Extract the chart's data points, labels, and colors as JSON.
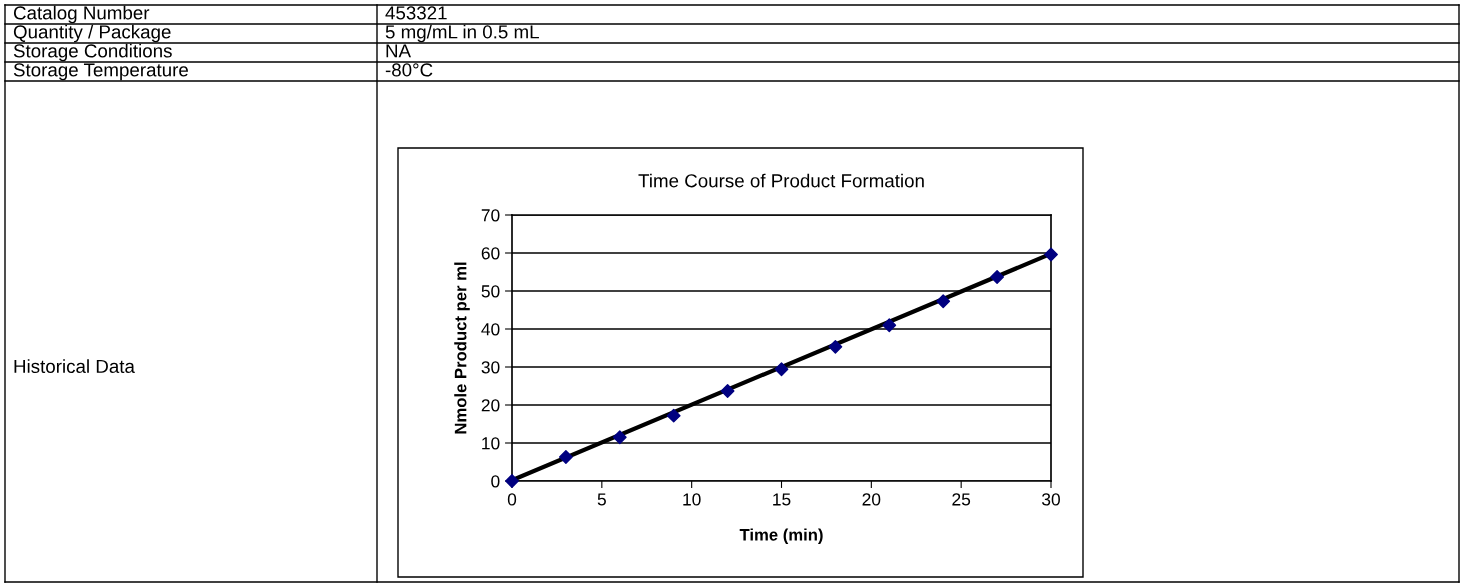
{
  "chart_data": {
    "type": "scatter",
    "title": "Time Course of Product Formation",
    "xlabel": "Time (min)",
    "ylabel": "Nmole Product per ml",
    "series": [
      {
        "color": "#000080",
        "marker": "diamond",
        "x": [
          0,
          3,
          6,
          9,
          12,
          15,
          18,
          21,
          24,
          27,
          30
        ],
        "values": [
          0,
          6.3,
          11.5,
          17.2,
          23.7,
          29.4,
          35.3,
          41,
          47.3,
          53.7,
          59.6
        ]
      },
      {
        "type": "line",
        "color": "#000000",
        "marker": "none",
        "line_style": "solid",
        "x": [
          0,
          30
        ],
        "values": [
          0.2,
          59.8
        ]
      }
    ],
    "xlim": [
      0,
      30
    ],
    "xticks": [
      0,
      5,
      10,
      15,
      20,
      25,
      30
    ],
    "ylim": [
      0,
      70
    ],
    "yticks": [
      0,
      10,
      20,
      30,
      40,
      50,
      60,
      70
    ],
    "grid": "y",
    "annotations": [
      "Catalog Number",
      "453321",
      "Quantity / Package",
      "5 mg/mL in 0.5 mL",
      "Storage Conditions",
      "NA",
      "Storage Temperature",
      "-80°C",
      "Historical Data"
    ]
  }
}
